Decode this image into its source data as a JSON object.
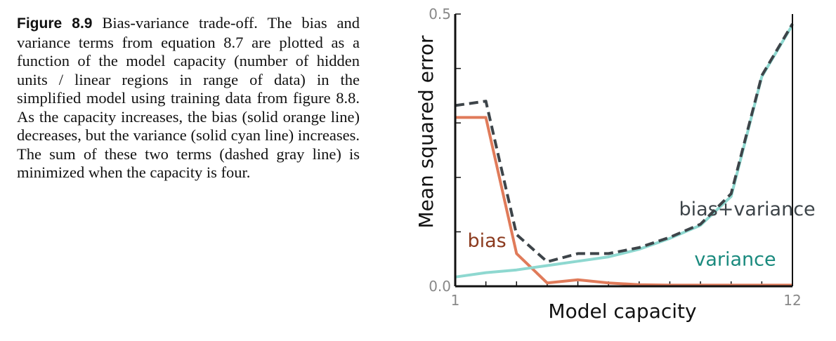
{
  "caption": {
    "label": "Figure 8.9",
    "text": " Bias-variance trade-off. The bias and variance terms from equation 8.7 are plotted as a function of the model capacity (number of hidden units / linear regions in range of data) in the simplified model using training data from figure 8.8. As the capacity increases, the bias (solid orange line) decreases, but the variance (solid cyan line) increases. The sum of these two terms (dashed gray line) is minimized when the capacity is four."
  },
  "chart_data": {
    "type": "line",
    "xlabel": "Model capacity",
    "ylabel": "Mean squared error",
    "xlim": [
      1,
      12
    ],
    "ylim": [
      0,
      0.5
    ],
    "x_ticks": [
      {
        "value": 1,
        "label": "1"
      },
      {
        "value": 12,
        "label": "12"
      }
    ],
    "y_ticks": [
      {
        "value": 0.0,
        "label": "0.0"
      },
      {
        "value": 0.5,
        "label": "0.5"
      }
    ],
    "grid": false,
    "x": [
      1,
      2,
      3,
      4,
      5,
      6,
      7,
      8,
      9,
      10,
      11,
      12
    ],
    "series": [
      {
        "name": "bias",
        "color": "#E07B5A",
        "style": "solid",
        "values": [
          0.31,
          0.31,
          0.06,
          0.006,
          0.012,
          0.006,
          0.003,
          0.002,
          0.002,
          0.002,
          0.002,
          0.002
        ]
      },
      {
        "name": "variance",
        "color": "#8ED8D0",
        "style": "solid",
        "values": [
          0.017,
          0.025,
          0.03,
          0.038,
          0.046,
          0.054,
          0.068,
          0.088,
          0.112,
          0.165,
          0.385,
          0.48
        ]
      },
      {
        "name": "bias+variance",
        "color": "#3D4449",
        "style": "dashed",
        "values": [
          0.332,
          0.34,
          0.095,
          0.045,
          0.06,
          0.06,
          0.071,
          0.09,
          0.114,
          0.17,
          0.387,
          0.482
        ]
      }
    ],
    "annotations": [
      {
        "text": "bias+variance",
        "x": 8.3,
        "y": 0.13,
        "color": "#3D4449"
      },
      {
        "text": "bias",
        "x": 1.4,
        "y": 0.072,
        "color": "#8B3A1E"
      },
      {
        "text": "variance",
        "x": 8.8,
        "y": 0.038,
        "color": "#1A8A7E"
      }
    ]
  }
}
